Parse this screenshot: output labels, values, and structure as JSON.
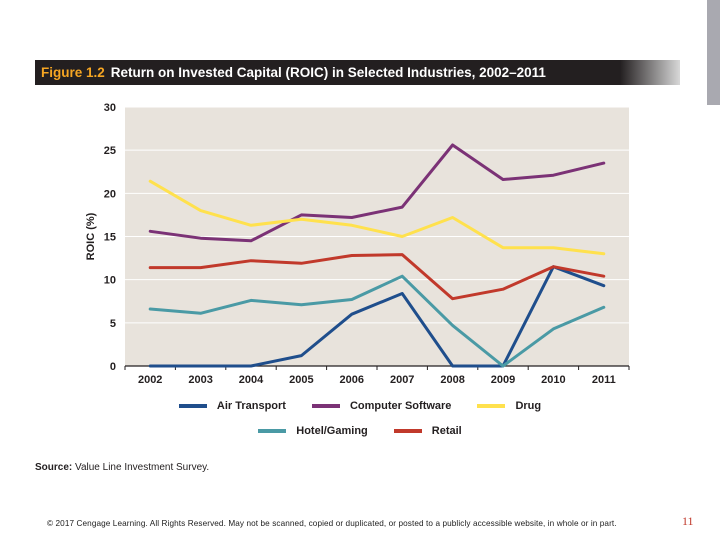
{
  "header": {
    "figure_label": "Figure 1.2",
    "title": "Return on Invested Capital (ROIC) in Selected Industries, 2002–2011"
  },
  "chart_data": {
    "type": "line",
    "title": "Return on Invested Capital (ROIC) in Selected Industries, 2002–2011",
    "xlabel": "",
    "ylabel": "ROIC (%)",
    "ylim": [
      0,
      30
    ],
    "yticks": [
      0,
      5,
      10,
      15,
      20,
      25,
      30
    ],
    "grid": true,
    "categories": [
      "2002",
      "2003",
      "2004",
      "2005",
      "2006",
      "2007",
      "2008",
      "2009",
      "2010",
      "2011"
    ],
    "series": [
      {
        "name": "Air Transport",
        "color": "#1f4e8c",
        "values": [
          0,
          0,
          0,
          1.2,
          6.0,
          8.4,
          0,
          0,
          11.5,
          9.3
        ]
      },
      {
        "name": "Computer Software",
        "color": "#7b3276",
        "values": [
          15.6,
          14.8,
          14.5,
          17.5,
          17.2,
          18.4,
          25.6,
          21.6,
          22.1,
          23.5
        ]
      },
      {
        "name": "Drug",
        "color": "#ffe14d",
        "values": [
          21.4,
          18.0,
          16.3,
          17.0,
          16.3,
          15.0,
          17.2,
          13.7,
          13.7,
          13.0
        ]
      },
      {
        "name": "Hotel/Gaming",
        "color": "#4a9aa5",
        "values": [
          6.6,
          6.1,
          7.6,
          7.1,
          7.7,
          10.4,
          4.7,
          0,
          4.3,
          6.8
        ]
      },
      {
        "name": "Retail",
        "color": "#c1392b",
        "values": [
          11.4,
          11.4,
          12.2,
          11.9,
          12.8,
          12.9,
          7.8,
          8.9,
          11.5,
          10.4
        ]
      }
    ]
  },
  "legend": {
    "row1": [
      "Air Transport",
      "Computer Software",
      "Drug"
    ],
    "row2": [
      "Hotel/Gaming",
      "Retail"
    ]
  },
  "source": {
    "label": "Source:",
    "text": "Value Line Investment Survey."
  },
  "footer": {
    "copyright": "© 2017 Cengage Learning. All Rights Reserved. May not be scanned, copied or duplicated, or posted to a publicly accessible website, in whole or in part.",
    "page_number": "11"
  }
}
